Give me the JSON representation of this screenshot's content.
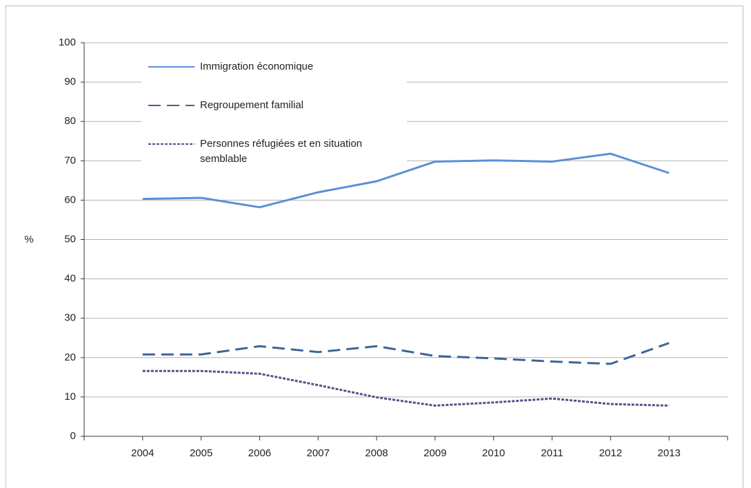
{
  "chart_data": {
    "type": "line",
    "y_label": "%",
    "categories": [
      "2004",
      "2005",
      "2006",
      "2007",
      "2008",
      "2009",
      "2010",
      "2011",
      "2012",
      "2013"
    ],
    "series": [
      {
        "name": "Immigration économique",
        "color": "#5b8fd6",
        "dash": "solid",
        "values": [
          60.3,
          60.6,
          58.2,
          62.0,
          64.8,
          69.8,
          70.1,
          69.8,
          71.8,
          66.9
        ]
      },
      {
        "name": "Regroupement familial",
        "color": "#3a6596",
        "dash": "dashed",
        "values": [
          20.8,
          20.8,
          22.9,
          21.4,
          22.9,
          20.4,
          19.8,
          19.0,
          18.4,
          23.7
        ]
      },
      {
        "name": "Personnes réfugiées et en situation semblable",
        "color": "#5b4b82",
        "dash": "dotted",
        "values": [
          16.6,
          16.6,
          15.9,
          13.0,
          9.9,
          7.8,
          8.6,
          9.6,
          8.2,
          7.8
        ]
      }
    ],
    "ylim": [
      0,
      100
    ],
    "yticks": [
      0,
      10,
      20,
      30,
      40,
      50,
      60,
      70,
      80,
      90,
      100
    ],
    "grid": true,
    "legend": "top-left"
  }
}
